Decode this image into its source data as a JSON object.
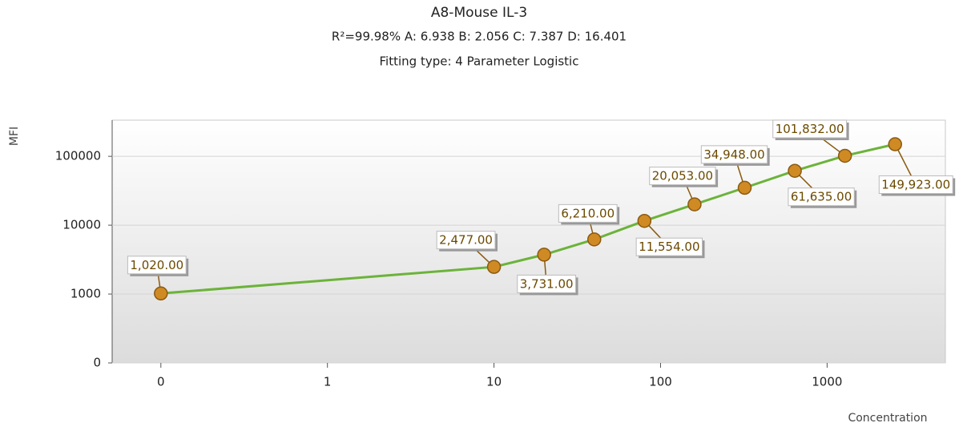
{
  "chart_data": {
    "type": "line",
    "title": "A8-Mouse IL-3",
    "subtitle": [
      "R²=99.98% A: 6.938 B: 2.056 C: 7.387 D: 16.401",
      "Fitting type: 4 Parameter Logistic"
    ],
    "x_label": "Concentration",
    "y_label": "MFI",
    "x_log": true,
    "y_log": true,
    "grid": true,
    "x": [
      0.1,
      10,
      20,
      40,
      80,
      160,
      320,
      640,
      1280,
      2560
    ],
    "series": [
      {
        "name": "A8-Mouse IL-3",
        "color": "#6cb33a",
        "marker_color": "#d08a24",
        "values": [
          1020,
          2477,
          3731,
          6210,
          11554,
          20053,
          34948,
          61635,
          101832,
          149923
        ],
        "value_labels": [
          "1,020.00",
          "2,477.00",
          "3,731.00",
          "6,210.00",
          "11,554.00",
          "20,053.00",
          "34,948.00",
          "61,635.00",
          "101,832.00",
          "149,923.00"
        ]
      }
    ],
    "xlim": [
      0.051,
      5130
    ],
    "xticks": [
      {
        "value": 0.1,
        "label": "0"
      },
      1,
      10,
      100,
      1000
    ],
    "ylim": [
      100,
      335000
    ],
    "yticks": [
      {
        "value": 100,
        "label": "0"
      },
      1000,
      10000,
      100000
    ]
  }
}
